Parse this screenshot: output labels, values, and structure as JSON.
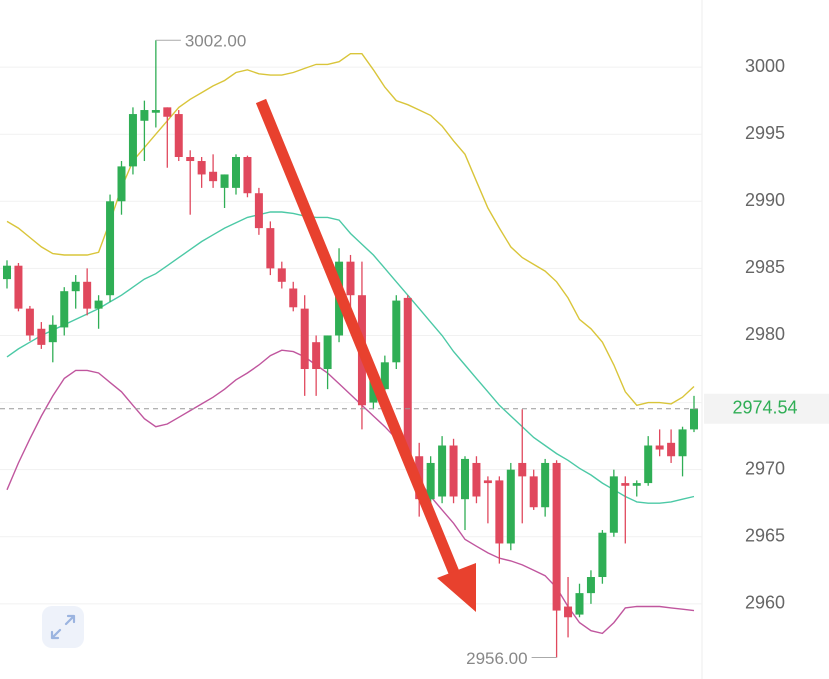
{
  "chart_data": {
    "type": "candlestick",
    "ylim": [
      2954.4,
      3005
    ],
    "yticks": [
      2960,
      2965,
      2970,
      2975,
      2980,
      2985,
      2990,
      2995,
      3000
    ],
    "grid": true,
    "up_color": "#2fae55",
    "down_color": "#e0485d",
    "open": [
      2984.2,
      2985.2,
      2982.0,
      2980.5,
      2979.5,
      2980.6,
      2983.3,
      2984.0,
      2982.0,
      2983.0,
      2990.0,
      2992.6,
      2996.0,
      2996.6,
      2997.0,
      2996.5,
      2993.3,
      2993.0,
      2992.2,
      2991.0,
      2991.0,
      2993.3,
      2990.6,
      2988.0,
      2985.0,
      2983.5,
      2982.0,
      2979.5,
      2977.5,
      2980.0,
      2985.5,
      2983.0,
      2975.0,
      2976.0,
      2978.0,
      2982.8,
      2971.0,
      2967.8,
      2968.0,
      2971.8,
      2967.8,
      2970.5,
      2969.2,
      2969.2,
      2964.5,
      2970.5,
      2969.5,
      2967.2,
      2970.5,
      2959.8,
      2959.2,
      2960.8,
      2962.0,
      2965.3,
      2969.0,
      2968.8,
      2969.0,
      2971.8,
      2972.0,
      2971.0,
      2973.0
    ],
    "high": [
      2985.6,
      2985.4,
      2982.2,
      2981.0,
      2981.5,
      2983.6,
      2984.5,
      2985.0,
      2983.0,
      2990.5,
      2993.0,
      2997.0,
      2997.5,
      3002.0,
      2997.0,
      2996.8,
      2993.8,
      2993.3,
      2993.5,
      2992.0,
      2993.5,
      2993.4,
      2991.0,
      2988.5,
      2985.5,
      2984.0,
      2983.0,
      2980.0,
      2980.0,
      2986.5,
      2986.0,
      2985.5,
      2977.5,
      2978.5,
      2983.0,
      2983.0,
      2972.0,
      2971.0,
      2972.5,
      2972.3,
      2971.0,
      2971.0,
      2969.5,
      2969.5,
      2970.5,
      2974.5,
      2970.0,
      2970.8,
      2970.7,
      2962.0,
      2961.5,
      2962.5,
      2965.5,
      2970.0,
      2969.5,
      2969.2,
      2972.5,
      2973.0,
      2973.0,
      2973.2,
      2975.5
    ],
    "low": [
      2983.5,
      2981.8,
      2979.6,
      2979.0,
      2978.0,
      2980.0,
      2982.0,
      2981.5,
      2980.5,
      2982.5,
      2989.0,
      2992.0,
      2993.0,
      2995.5,
      2992.5,
      2993.0,
      2989.0,
      2991.0,
      2991.0,
      2989.5,
      2990.5,
      2990.3,
      2987.5,
      2984.5,
      2983.5,
      2981.8,
      2975.5,
      2975.5,
      2976.0,
      2979.5,
      2981.0,
      2973.0,
      2974.5,
      2975.0,
      2977.5,
      2970.0,
      2966.5,
      2967.0,
      2967.5,
      2967.5,
      2965.5,
      2967.5,
      2966.0,
      2963.0,
      2964.0,
      2966.0,
      2967.0,
      2966.5,
      2956.0,
      2957.5,
      2959.0,
      2960.0,
      2961.5,
      2965.0,
      2964.5,
      2968.0,
      2968.8,
      2971.0,
      2970.5,
      2969.5,
      2972.8
    ],
    "close": [
      2985.2,
      2982.0,
      2980.0,
      2979.3,
      2980.8,
      2983.3,
      2984.0,
      2982.0,
      2982.6,
      2990.0,
      2992.6,
      2996.5,
      2996.8,
      2996.8,
      2996.3,
      2993.3,
      2993.0,
      2992.0,
      2991.5,
      2992.0,
      2993.3,
      2990.6,
      2988.0,
      2985.0,
      2984.0,
      2982.1,
      2977.5,
      2977.5,
      2980.0,
      2985.5,
      2983.0,
      2974.8,
      2977.2,
      2978.0,
      2982.6,
      2970.5,
      2967.8,
      2970.5,
      2971.8,
      2968.0,
      2970.8,
      2968.0,
      2969.0,
      2964.5,
      2970.0,
      2969.5,
      2967.2,
      2970.5,
      2959.5,
      2959.0,
      2960.8,
      2962.0,
      2965.3,
      2969.5,
      2968.8,
      2969.0,
      2971.8,
      2971.5,
      2971.0,
      2973.0,
      2974.54
    ],
    "overlays": [
      {
        "color": "#d9c53a",
        "values": [
          2988.5,
          2988.0,
          2987.3,
          2986.6,
          2986.1,
          2986.0,
          2986.0,
          2986.0,
          2986.2,
          2988.5,
          2991.0,
          2993.0,
          2994.0,
          2995.0,
          2996.0,
          2997.0,
          2997.6,
          2998.1,
          2998.6,
          2999.0,
          2999.6,
          2999.8,
          2999.5,
          2999.4,
          2999.4,
          2999.6,
          2999.9,
          3000.2,
          3000.2,
          3000.4,
          3001.0,
          3001.0,
          2999.8,
          2998.5,
          2997.5,
          2997.2,
          2996.8,
          2996.4,
          2995.6,
          2994.5,
          2993.5,
          2991.5,
          2989.5,
          2988.0,
          2986.6,
          2985.8,
          2985.3,
          2984.8,
          2984.0,
          2982.8,
          2981.2,
          2980.5,
          2979.5,
          2977.8,
          2975.8,
          2974.8,
          2975.0,
          2975.0,
          2974.9,
          2975.4,
          2976.2
        ]
      },
      {
        "color": "#4cc9a6",
        "values": [
          2978.4,
          2979.0,
          2979.5,
          2980.0,
          2980.4,
          2980.8,
          2981.2,
          2981.6,
          2982.0,
          2982.5,
          2983.0,
          2983.6,
          2984.2,
          2984.6,
          2985.2,
          2985.8,
          2986.4,
          2987.0,
          2987.5,
          2988.0,
          2988.4,
          2988.8,
          2989.0,
          2989.2,
          2989.2,
          2989.1,
          2988.9,
          2988.8,
          2988.8,
          2988.6,
          2987.6,
          2986.8,
          2986.0,
          2985.0,
          2984.0,
          2983.0,
          2982.0,
          2981.0,
          2980.0,
          2978.8,
          2977.8,
          2976.8,
          2975.8,
          2974.8,
          2974.0,
          2973.2,
          2972.4,
          2971.8,
          2971.2,
          2970.7,
          2970.1,
          2969.6,
          2969.0,
          2968.5,
          2968.0,
          2967.6,
          2967.5,
          2967.5,
          2967.6,
          2967.8,
          2968.0
        ]
      },
      {
        "color": "#c0569e",
        "values": [
          2968.5,
          2970.5,
          2972.3,
          2974.0,
          2975.5,
          2976.8,
          2977.4,
          2977.4,
          2977.2,
          2976.5,
          2975.8,
          2974.8,
          2973.8,
          2973.2,
          2973.4,
          2973.9,
          2974.4,
          2974.9,
          2975.4,
          2976.0,
          2976.7,
          2977.2,
          2977.8,
          2978.5,
          2978.9,
          2978.8,
          2978.4,
          2977.8,
          2977.2,
          2976.4,
          2975.6,
          2974.8,
          2974.0,
          2973.2,
          2972.3,
          2970.8,
          2969.2,
          2968.0,
          2967.0,
          2966.0,
          2964.8,
          2964.3,
          2963.8,
          2963.4,
          2963.2,
          2962.9,
          2962.5,
          2962.1,
          2961.2,
          2959.8,
          2958.6,
          2958.0,
          2957.8,
          2958.6,
          2959.7,
          2959.8,
          2959.8,
          2959.8,
          2959.7,
          2959.6,
          2959.5
        ]
      }
    ],
    "current_price": 2974.54,
    "high_label": {
      "value": 3002,
      "label": "3002.00"
    },
    "low_label": {
      "value": 2956,
      "label": "2956.00"
    }
  }
}
